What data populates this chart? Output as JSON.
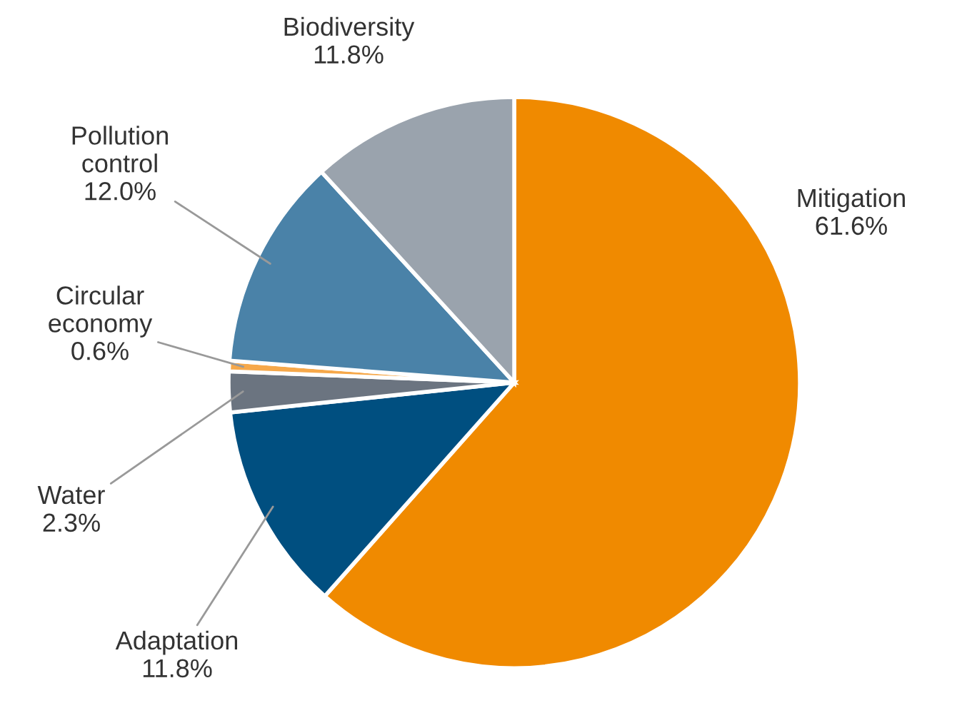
{
  "chart_data": {
    "type": "pie",
    "categories": [
      "Mitigation",
      "Adaptation",
      "Water",
      "Circular economy",
      "Pollution control",
      "Biodiversity"
    ],
    "values": [
      61.6,
      11.8,
      2.3,
      0.6,
      12.0,
      11.8
    ],
    "value_labels": [
      "61.6%",
      "11.8%",
      "2.3%",
      "0.6%",
      "12.0%",
      "11.8%"
    ],
    "colors": [
      "#f08a00",
      "#004f80",
      "#6b7480",
      "#f6a84a",
      "#4a82a8",
      "#9aa3ad"
    ]
  }
}
